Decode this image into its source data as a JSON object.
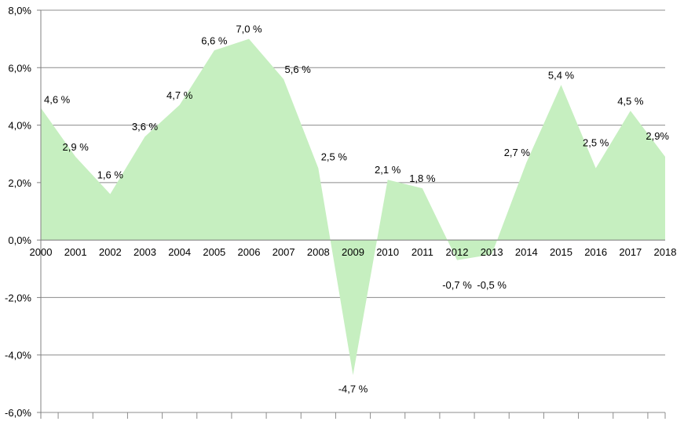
{
  "chart_data": {
    "type": "area",
    "title": "",
    "xlabel": "",
    "ylabel": "",
    "categories": [
      "2000",
      "2001",
      "2002",
      "2003",
      "2004",
      "2005",
      "2006",
      "2007",
      "2008",
      "2009",
      "2010",
      "2011",
      "2012",
      "2013",
      "2014",
      "2015",
      "2016",
      "2017",
      "2018"
    ],
    "values": [
      4.6,
      2.9,
      1.6,
      3.6,
      4.7,
      6.6,
      7.0,
      5.6,
      2.5,
      -4.7,
      2.1,
      1.8,
      -0.7,
      -0.5,
      2.7,
      5.4,
      2.5,
      4.5,
      2.9
    ],
    "data_labels": [
      "4,6 %",
      "2,9 %",
      "1,6 %",
      "3,6 %",
      "4,7 %",
      "6,6 %",
      "7,0 %",
      "5,6 %",
      "2,5 %",
      "-4,7 %",
      "2,1 %",
      "1,8 %",
      "-0,7 %",
      "-0,5 %",
      "2,7 %",
      "5,4 %",
      "2,5 %",
      "4,5 %",
      "2,9%"
    ],
    "ylim": [
      -6,
      8
    ],
    "y_ticks": [
      8,
      6,
      4,
      2,
      0,
      -2,
      -4,
      -6
    ],
    "y_tick_labels": [
      "8,0%",
      "6,0%",
      "4,0%",
      "2,0%",
      "0,0%",
      "-2,0%",
      "-4,0%",
      "-6,0%"
    ],
    "grid": true,
    "legend": "none",
    "colors": {
      "fill": "#c6efc0",
      "grid": "#8c8c8c",
      "axis": "#808080",
      "text": "#000000"
    }
  }
}
